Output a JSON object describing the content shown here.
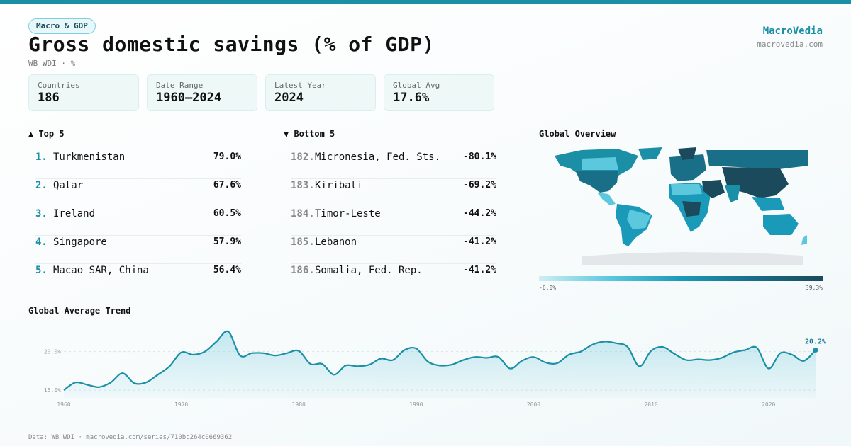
{
  "header": {
    "badge": "Macro & GDP",
    "title": "Gross domestic savings (% of GDP)",
    "subtitle": "WB WDI · %",
    "brand": "MacroVedia",
    "brand_url": "macrovedia.com"
  },
  "stats": [
    {
      "label": "Countries",
      "value": "186"
    },
    {
      "label": "Date Range",
      "value": "1960–2024"
    },
    {
      "label": "Latest Year",
      "value": "2024"
    },
    {
      "label": "Global Avg",
      "value": "17.6%"
    }
  ],
  "top5": {
    "heading": "▲ Top 5",
    "rows": [
      {
        "rank": "1.",
        "name": "Turkmenistan",
        "value": "79.0%"
      },
      {
        "rank": "2.",
        "name": "Qatar",
        "value": "67.6%"
      },
      {
        "rank": "3.",
        "name": "Ireland",
        "value": "60.5%"
      },
      {
        "rank": "4.",
        "name": "Singapore",
        "value": "57.9%"
      },
      {
        "rank": "5.",
        "name": "Macao SAR, China",
        "value": "56.4%"
      }
    ]
  },
  "bottom5": {
    "heading": "▼ Bottom 5",
    "rows": [
      {
        "rank": "182.",
        "name": "Micronesia, Fed. Sts.",
        "value": "-80.1%"
      },
      {
        "rank": "183.",
        "name": "Kiribati",
        "value": "-69.2%"
      },
      {
        "rank": "184.",
        "name": "Timor-Leste",
        "value": "-44.2%"
      },
      {
        "rank": "185.",
        "name": "Lebanon",
        "value": "-41.2%"
      },
      {
        "rank": "186.",
        "name": "Somalia, Fed. Rep.",
        "value": "-41.2%"
      }
    ]
  },
  "map": {
    "heading": "Global Overview",
    "legend_min": "-6.0%",
    "legend_max": "39.3%",
    "colors": [
      "#cfeef5",
      "#5bc8dd",
      "#1a9ab8",
      "#1a6f88",
      "#1a4a5c"
    ]
  },
  "trend": {
    "heading": "Global Average Trend",
    "last_label": "20.2%"
  },
  "footer": "Data: WB WDI · macrovedia.com/series/710bc264c0669362",
  "chart_data": {
    "type": "area",
    "title": "Global Average Trend",
    "x_ticks": [
      1960,
      1970,
      1980,
      1990,
      2000,
      2010,
      2020
    ],
    "y_ticks": [
      {
        "value": 15,
        "label": "15.0%"
      },
      {
        "value": 20,
        "label": "20.0%"
      }
    ],
    "xlim": [
      1960,
      2024
    ],
    "ylim": [
      14,
      23
    ],
    "line_color": "#1a8fa5",
    "series": [
      {
        "x": [
          1960,
          1961,
          1962,
          1963,
          1964,
          1965,
          1966,
          1967,
          1968,
          1969,
          1970,
          1971,
          1972,
          1973,
          1974,
          1975,
          1976,
          1977,
          1978,
          1979,
          1980,
          1981,
          1982,
          1983,
          1984,
          1985,
          1986,
          1987,
          1988,
          1989,
          1990,
          1991,
          1992,
          1993,
          1994,
          1995,
          1996,
          1997,
          1998,
          1999,
          2000,
          2001,
          2002,
          2003,
          2004,
          2005,
          2006,
          2007,
          2008,
          2009,
          2010,
          2011,
          2012,
          2013,
          2014,
          2015,
          2016,
          2017,
          2018,
          2019,
          2020,
          2021,
          2022,
          2023,
          2024
        ],
        "values": [
          15.0,
          16.0,
          15.7,
          15.4,
          16.0,
          17.2,
          15.9,
          16.0,
          17.0,
          18.1,
          19.9,
          19.6,
          20.0,
          21.3,
          22.6,
          19.5,
          19.8,
          19.8,
          19.5,
          19.8,
          20.1,
          18.4,
          18.4,
          17.0,
          18.2,
          18.1,
          18.3,
          19.1,
          18.9,
          20.2,
          20.4,
          18.7,
          18.2,
          18.3,
          18.9,
          19.3,
          19.2,
          19.3,
          17.8,
          18.8,
          19.3,
          18.6,
          18.5,
          19.6,
          20.0,
          20.9,
          21.3,
          21.1,
          20.6,
          18.1,
          20.1,
          20.6,
          19.7,
          18.9,
          19.0,
          18.9,
          19.2,
          19.9,
          20.2,
          20.5,
          17.8,
          19.8,
          19.6,
          18.8,
          20.2
        ]
      }
    ]
  }
}
